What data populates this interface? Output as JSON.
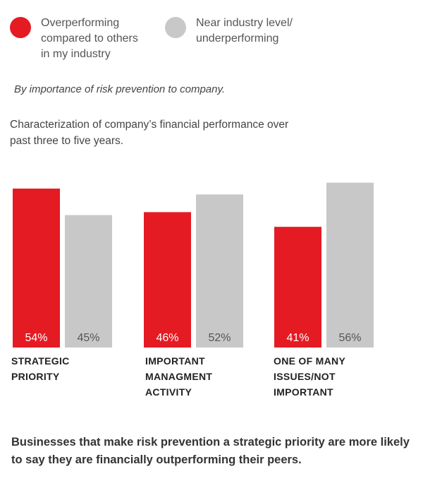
{
  "legend": [
    {
      "label": "Overperforming\ncompared to others\nin my industry",
      "color": "#e51b24"
    },
    {
      "label": "Near industry level/\nunderperforming",
      "color": "#c8c8c8"
    }
  ],
  "subtitle": "By importance of risk prevention to company.",
  "caption": "Characterization of company’s financial performance over past three to five years.",
  "footnote": "Businesses that make risk prevention a strategic priority are more likely to say they are financially outperforming their peers.",
  "chart_data": {
    "type": "bar",
    "categories": [
      "STRATEGIC\nPRIORITY",
      "IMPORTANT\nMANAGMENT\nACTIVITY",
      "ONE OF MANY\nISSUES/NOT\nIMPORTANT"
    ],
    "series": [
      {
        "name": "Overperforming compared to others in my industry",
        "values": [
          54,
          46,
          41
        ],
        "labels": [
          "54%",
          "46%",
          "41%"
        ],
        "color": "#e51b24"
      },
      {
        "name": "Near industry level/ underperforming",
        "values": [
          45,
          52,
          56
        ],
        "labels": [
          "45%",
          "52%",
          "56%"
        ],
        "color": "#c8c8c8"
      }
    ],
    "ylim": [
      0,
      56
    ]
  }
}
